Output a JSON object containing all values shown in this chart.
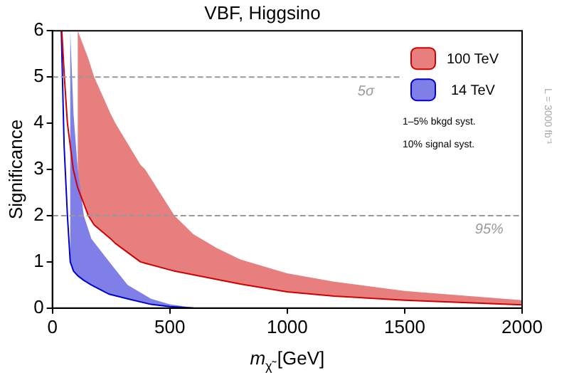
{
  "chart_data": {
    "type": "line",
    "title": "VBF, Higgsino",
    "xlabel": "m$_{χ̃}$ [GeV]",
    "ylabel": "Significance",
    "xlim": [
      0,
      2000
    ],
    "xticks": [
      0,
      500,
      1000,
      1500,
      2000
    ],
    "ylim": [
      0,
      6
    ],
    "yticks": [
      0,
      1,
      2,
      3,
      4,
      5,
      6
    ],
    "grid": false,
    "legend": "top right",
    "marker": "none",
    "series": [
      {
        "name": "100 TeV",
        "color": "#d00000",
        "x": [
          40,
          51,
          64,
          89,
          108,
          153,
          178,
          248,
          268,
          375,
          395,
          520,
          600,
          700,
          800,
          1000,
          1200,
          1500,
          2000
        ],
        "values": [
          6,
          5,
          4,
          3,
          2.6,
          2,
          1.8,
          1.5,
          1.4,
          1,
          0.97,
          0.8,
          0.72,
          0.62,
          0.52,
          0.35,
          0.26,
          0.17,
          0.07
        ],
        "lower": [
          null,
          null,
          null,
          null,
          2.6,
          2,
          1.8,
          1.5,
          1.4,
          1,
          0.97,
          0.8,
          0.72,
          0.62,
          0.52,
          0.35,
          0.26,
          0.17,
          0.07
        ],
        "upper": [
          null,
          null,
          null,
          null,
          6,
          5.4,
          5,
          4.2,
          4,
          3.1,
          3,
          2,
          1.6,
          1.3,
          1.05,
          0.75,
          0.57,
          0.37,
          0.17
        ]
      },
      {
        "name": "14 TeV",
        "color": "#0000d0",
        "x": [
          38,
          50,
          64,
          76,
          90,
          108,
          134,
          166,
          242,
          320,
          420,
          500,
          600
        ],
        "values": [
          6,
          3.5,
          2,
          1,
          0.8,
          0.7,
          0.6,
          0.5,
          0.3,
          0.2,
          0.08,
          0.03,
          0
        ],
        "lower": [
          null,
          null,
          null,
          1,
          0.8,
          0.7,
          0.6,
          0.5,
          0.3,
          0.2,
          0.08,
          0.03,
          0
        ],
        "upper": [
          null,
          null,
          null,
          6,
          4.2,
          3,
          2,
          1.5,
          1,
          0.5,
          0.2,
          0.08,
          0.01
        ]
      }
    ],
    "ref_lines": [
      {
        "axis": "y",
        "value": 5,
        "label": "5σ",
        "color": "#999999",
        "line_style": "dashed"
      },
      {
        "axis": "y",
        "value": 2,
        "color": "#999999",
        "line_style": "dashed"
      }
    ],
    "annotations": [
      {
        "text": "95%",
        "x": 1860,
        "y": 2
      },
      "1–5% bkgd syst.",
      "10% signal syst.",
      "L = 3000 fb⁻¹"
    ]
  }
}
